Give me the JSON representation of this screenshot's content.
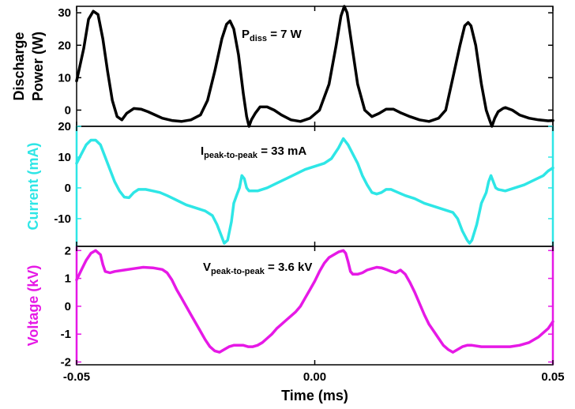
{
  "chart_data": {
    "type": "line",
    "shared_x": {
      "label": "Time (ms)",
      "range": [
        -0.05,
        0.05
      ],
      "ticks": [
        -0.05,
        0.0,
        0.05
      ],
      "tick_labels": [
        "-0.05",
        "0.00",
        "0.05"
      ]
    },
    "panels": [
      {
        "id": "power",
        "ylabel_lines": [
          "Discharge",
          "Power (W)"
        ],
        "ylim": [
          -5,
          32
        ],
        "yticks": [
          0,
          10,
          20,
          30
        ],
        "ytick_labels": [
          "0",
          "10",
          "20",
          "30"
        ],
        "color": "#000000",
        "annotation": {
          "main": "P",
          "sub": "diss",
          "rest": " = 7 W"
        },
        "points": [
          [
            -0.05,
            9
          ],
          [
            -0.0485,
            19
          ],
          [
            -0.0475,
            28
          ],
          [
            -0.0465,
            30.5
          ],
          [
            -0.0455,
            29.5
          ],
          [
            -0.0445,
            22
          ],
          [
            -0.0435,
            12
          ],
          [
            -0.0425,
            3
          ],
          [
            -0.0415,
            -2
          ],
          [
            -0.0405,
            -3
          ],
          [
            -0.0395,
            -1
          ],
          [
            -0.038,
            0.5
          ],
          [
            -0.0365,
            0.3
          ],
          [
            -0.035,
            -0.5
          ],
          [
            -0.0335,
            -1.5
          ],
          [
            -0.032,
            -2.5
          ],
          [
            -0.03,
            -3.2
          ],
          [
            -0.028,
            -3.5
          ],
          [
            -0.026,
            -3
          ],
          [
            -0.024,
            -1.5
          ],
          [
            -0.0225,
            3
          ],
          [
            -0.021,
            12
          ],
          [
            -0.0195,
            22
          ],
          [
            -0.0185,
            26.5
          ],
          [
            -0.0178,
            27.5
          ],
          [
            -0.017,
            25
          ],
          [
            -0.016,
            17
          ],
          [
            -0.015,
            5
          ],
          [
            -0.0143,
            -2
          ],
          [
            -0.0138,
            -5
          ],
          [
            -0.0133,
            -3
          ],
          [
            -0.0125,
            -1
          ],
          [
            -0.0115,
            1
          ],
          [
            -0.01,
            1
          ],
          [
            -0.0085,
            0
          ],
          [
            -0.007,
            -1.5
          ],
          [
            -0.005,
            -3
          ],
          [
            -0.003,
            -3.5
          ],
          [
            -0.001,
            -2.5
          ],
          [
            0.001,
            0
          ],
          [
            0.003,
            8
          ],
          [
            0.0045,
            20
          ],
          [
            0.0055,
            29
          ],
          [
            0.0062,
            32
          ],
          [
            0.0068,
            30
          ],
          [
            0.0078,
            20
          ],
          [
            0.009,
            8
          ],
          [
            0.0105,
            0
          ],
          [
            0.012,
            -2
          ],
          [
            0.0135,
            -1
          ],
          [
            0.015,
            0.3
          ],
          [
            0.0165,
            0.3
          ],
          [
            0.018,
            -0.8
          ],
          [
            0.02,
            -2
          ],
          [
            0.022,
            -3
          ],
          [
            0.024,
            -3.5
          ],
          [
            0.026,
            -2.5
          ],
          [
            0.0275,
            0
          ],
          [
            0.029,
            10
          ],
          [
            0.0305,
            20
          ],
          [
            0.0315,
            26
          ],
          [
            0.0322,
            27
          ],
          [
            0.0328,
            26
          ],
          [
            0.0338,
            20
          ],
          [
            0.035,
            8
          ],
          [
            0.036,
            0
          ],
          [
            0.0367,
            -3
          ],
          [
            0.0372,
            -5
          ],
          [
            0.0378,
            -2.5
          ],
          [
            0.0385,
            -0.5
          ],
          [
            0.0395,
            0.5
          ],
          [
            0.04,
            0.8
          ],
          [
            0.0415,
            0
          ],
          [
            0.043,
            -1.5
          ],
          [
            0.045,
            -2.5
          ],
          [
            0.047,
            -3
          ],
          [
            0.049,
            -3.3
          ],
          [
            0.05,
            -3.2
          ]
        ]
      },
      {
        "id": "current",
        "ylabel_lines": [
          "Current (mA)"
        ],
        "ylim": [
          -19,
          20
        ],
        "yticks": [
          -10,
          0,
          10,
          20
        ],
        "ytick_labels": [
          "-10",
          "0",
          "10",
          "20"
        ],
        "color": "#2ee6e6",
        "annotation": {
          "main": "I",
          "sub": "peak-to-peak",
          "rest": " = 33 mA"
        },
        "points": [
          [
            -0.05,
            8
          ],
          [
            -0.049,
            11
          ],
          [
            -0.048,
            14
          ],
          [
            -0.047,
            15.5
          ],
          [
            -0.046,
            15.5
          ],
          [
            -0.045,
            14
          ],
          [
            -0.044,
            10
          ],
          [
            -0.043,
            6
          ],
          [
            -0.042,
            2
          ],
          [
            -0.041,
            -1
          ],
          [
            -0.04,
            -3
          ],
          [
            -0.039,
            -3.2
          ],
          [
            -0.038,
            -1.5
          ],
          [
            -0.037,
            -0.5
          ],
          [
            -0.0355,
            -0.5
          ],
          [
            -0.034,
            -1
          ],
          [
            -0.0325,
            -1.5
          ],
          [
            -0.031,
            -2.5
          ],
          [
            -0.029,
            -4
          ],
          [
            -0.027,
            -5.5
          ],
          [
            -0.025,
            -6.5
          ],
          [
            -0.023,
            -7.5
          ],
          [
            -0.0215,
            -9
          ],
          [
            -0.0205,
            -12
          ],
          [
            -0.0195,
            -16
          ],
          [
            -0.019,
            -18
          ],
          [
            -0.0183,
            -17
          ],
          [
            -0.0175,
            -11
          ],
          [
            -0.017,
            -5
          ],
          [
            -0.0163,
            -2
          ],
          [
            -0.0158,
            0
          ],
          [
            -0.0153,
            4
          ],
          [
            -0.0148,
            3
          ],
          [
            -0.0143,
            0
          ],
          [
            -0.0138,
            -1
          ],
          [
            -0.012,
            -1
          ],
          [
            -0.01,
            0
          ],
          [
            -0.008,
            1.5
          ],
          [
            -0.006,
            3
          ],
          [
            -0.004,
            4.5
          ],
          [
            -0.002,
            6
          ],
          [
            0.0,
            7
          ],
          [
            0.002,
            8
          ],
          [
            0.0035,
            9.5
          ],
          [
            0.005,
            13
          ],
          [
            0.006,
            16
          ],
          [
            0.007,
            14
          ],
          [
            0.008,
            11
          ],
          [
            0.009,
            8
          ],
          [
            0.01,
            4
          ],
          [
            0.011,
            1
          ],
          [
            0.012,
            -1.5
          ],
          [
            0.013,
            -2
          ],
          [
            0.014,
            -1.5
          ],
          [
            0.015,
            -0.5
          ],
          [
            0.016,
            -0.5
          ],
          [
            0.0175,
            -1.5
          ],
          [
            0.019,
            -2.5
          ],
          [
            0.021,
            -3.5
          ],
          [
            0.023,
            -5
          ],
          [
            0.025,
            -6
          ],
          [
            0.027,
            -7
          ],
          [
            0.029,
            -8
          ],
          [
            0.03,
            -10
          ],
          [
            0.031,
            -14
          ],
          [
            0.032,
            -17
          ],
          [
            0.0325,
            -18
          ],
          [
            0.033,
            -17
          ],
          [
            0.034,
            -12
          ],
          [
            0.035,
            -5
          ],
          [
            0.036,
            -1.5
          ],
          [
            0.0365,
            2
          ],
          [
            0.037,
            4
          ],
          [
            0.0375,
            2
          ],
          [
            0.038,
            0
          ],
          [
            0.0385,
            -0.5
          ],
          [
            0.04,
            -1
          ],
          [
            0.042,
            0
          ],
          [
            0.044,
            1
          ],
          [
            0.046,
            2.5
          ],
          [
            0.048,
            4
          ],
          [
            0.049,
            5.5
          ],
          [
            0.05,
            6.5
          ]
        ]
      },
      {
        "id": "voltage",
        "ylabel_lines": [
          "Voltage (kV)"
        ],
        "ylim": [
          -2.1,
          2.15
        ],
        "yticks": [
          -2,
          -1,
          0,
          1,
          2
        ],
        "ytick_labels": [
          "-2",
          "-1",
          "0",
          "1",
          "2"
        ],
        "color": "#e619e6",
        "annotation": {
          "main": "V",
          "sub": "peak-to-peak",
          "rest": " = 3.6 kV"
        },
        "points": [
          [
            -0.05,
            0.95
          ],
          [
            -0.049,
            1.3
          ],
          [
            -0.048,
            1.65
          ],
          [
            -0.047,
            1.9
          ],
          [
            -0.046,
            2.0
          ],
          [
            -0.045,
            1.85
          ],
          [
            -0.0445,
            1.5
          ],
          [
            -0.044,
            1.25
          ],
          [
            -0.043,
            1.2
          ],
          [
            -0.042,
            1.25
          ],
          [
            -0.04,
            1.3
          ],
          [
            -0.038,
            1.35
          ],
          [
            -0.036,
            1.4
          ],
          [
            -0.034,
            1.38
          ],
          [
            -0.032,
            1.32
          ],
          [
            -0.031,
            1.2
          ],
          [
            -0.03,
            0.95
          ],
          [
            -0.029,
            0.6
          ],
          [
            -0.028,
            0.3
          ],
          [
            -0.027,
            0.0
          ],
          [
            -0.026,
            -0.3
          ],
          [
            -0.025,
            -0.6
          ],
          [
            -0.024,
            -0.9
          ],
          [
            -0.023,
            -1.2
          ],
          [
            -0.022,
            -1.45
          ],
          [
            -0.021,
            -1.6
          ],
          [
            -0.02,
            -1.65
          ],
          [
            -0.019,
            -1.55
          ],
          [
            -0.018,
            -1.45
          ],
          [
            -0.017,
            -1.4
          ],
          [
            -0.016,
            -1.4
          ],
          [
            -0.015,
            -1.4
          ],
          [
            -0.014,
            -1.45
          ],
          [
            -0.013,
            -1.45
          ],
          [
            -0.012,
            -1.4
          ],
          [
            -0.011,
            -1.3
          ],
          [
            -0.01,
            -1.15
          ],
          [
            -0.009,
            -1.0
          ],
          [
            -0.008,
            -0.8
          ],
          [
            -0.007,
            -0.65
          ],
          [
            -0.006,
            -0.5
          ],
          [
            -0.005,
            -0.35
          ],
          [
            -0.004,
            -0.2
          ],
          [
            -0.003,
            0.0
          ],
          [
            -0.002,
            0.3
          ],
          [
            -0.001,
            0.6
          ],
          [
            0.0,
            0.9
          ],
          [
            0.001,
            1.25
          ],
          [
            0.002,
            1.55
          ],
          [
            0.003,
            1.75
          ],
          [
            0.004,
            1.85
          ],
          [
            0.005,
            1.95
          ],
          [
            0.006,
            2.0
          ],
          [
            0.0065,
            1.9
          ],
          [
            0.007,
            1.6
          ],
          [
            0.0075,
            1.25
          ],
          [
            0.008,
            1.15
          ],
          [
            0.009,
            1.15
          ],
          [
            0.01,
            1.2
          ],
          [
            0.011,
            1.3
          ],
          [
            0.012,
            1.35
          ],
          [
            0.013,
            1.4
          ],
          [
            0.014,
            1.38
          ],
          [
            0.015,
            1.32
          ],
          [
            0.016,
            1.25
          ],
          [
            0.017,
            1.2
          ],
          [
            0.018,
            1.3
          ],
          [
            0.019,
            1.15
          ],
          [
            0.02,
            0.85
          ],
          [
            0.021,
            0.5
          ],
          [
            0.022,
            0.1
          ],
          [
            0.023,
            -0.3
          ],
          [
            0.024,
            -0.65
          ],
          [
            0.025,
            -0.9
          ],
          [
            0.026,
            -1.15
          ],
          [
            0.027,
            -1.4
          ],
          [
            0.028,
            -1.55
          ],
          [
            0.029,
            -1.65
          ],
          [
            0.03,
            -1.55
          ],
          [
            0.031,
            -1.45
          ],
          [
            0.032,
            -1.4
          ],
          [
            0.033,
            -1.4
          ],
          [
            0.035,
            -1.45
          ],
          [
            0.037,
            -1.45
          ],
          [
            0.039,
            -1.45
          ],
          [
            0.041,
            -1.45
          ],
          [
            0.043,
            -1.4
          ],
          [
            0.045,
            -1.3
          ],
          [
            0.047,
            -1.1
          ],
          [
            0.049,
            -0.8
          ],
          [
            0.05,
            -0.55
          ]
        ]
      }
    ],
    "grid": false,
    "legend": "none"
  }
}
